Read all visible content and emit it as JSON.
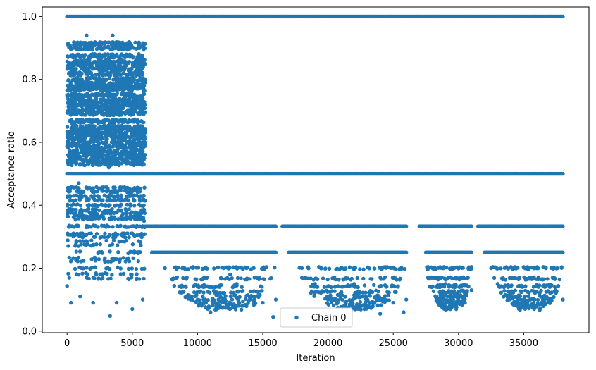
{
  "chart_data": {
    "type": "scatter",
    "title": "",
    "xlabel": "Iteration",
    "ylabel": "Acceptance ratio",
    "xlim": [
      -1900,
      40000
    ],
    "ylim": [
      -0.005,
      1.03
    ],
    "xticks": [
      0,
      5000,
      10000,
      15000,
      20000,
      25000,
      30000,
      35000
    ],
    "xtick_labels": [
      "0",
      "5000",
      "10000",
      "15000",
      "20000",
      "25000",
      "30000",
      "35000"
    ],
    "yticks": [
      0.0,
      0.2,
      0.4,
      0.6,
      0.8,
      1.0
    ],
    "ytick_labels": [
      "0.0",
      "0.2",
      "0.4",
      "0.6",
      "0.8",
      "1.0"
    ],
    "grid": false,
    "legend": {
      "position": "lower-center"
    },
    "series": [
      {
        "name": "Chain 0",
        "color": "#1f77b4",
        "marker": "circle",
        "x_range": [
          0,
          38000
        ],
        "description_levels": {
          "burn_in_end": 6000,
          "segments": [
            {
              "x": [
                0,
                38000
              ],
              "y": 1.0
            },
            {
              "x": [
                0,
                38000
              ],
              "y": 0.5
            },
            {
              "x": [
                6000,
                16000
              ],
              "y": 0.333
            },
            {
              "x": [
                16500,
                26000
              ],
              "y": 0.333
            },
            {
              "x": [
                27000,
                31000
              ],
              "y": 0.333
            },
            {
              "x": [
                31500,
                38000
              ],
              "y": 0.333
            },
            {
              "x": [
                6500,
                16000
              ],
              "y": 0.25
            },
            {
              "x": [
                17000,
                26000
              ],
              "y": 0.25
            },
            {
              "x": [
                27500,
                31000
              ],
              "y": 0.25
            },
            {
              "x": [
                32000,
                38000
              ],
              "y": 0.25
            }
          ]
        },
        "points": [
          [
            0,
            1.0
          ],
          [
            500,
            0.9
          ],
          [
            1000,
            0.85
          ],
          [
            2000,
            0.7
          ],
          [
            3000,
            0.6
          ],
          [
            4000,
            0.55
          ],
          [
            5000,
            0.45
          ],
          [
            5900,
            0.35
          ],
          [
            0,
            0.143
          ],
          [
            300,
            0.09
          ],
          [
            1000,
            0.11
          ],
          [
            2000,
            0.09
          ],
          [
            3300,
            0.048
          ],
          [
            3800,
            0.09
          ],
          [
            5000,
            0.07
          ],
          [
            5800,
            0.1
          ],
          [
            3500,
            0.94
          ],
          [
            3200,
            0.52
          ],
          [
            1500,
            0.94
          ],
          [
            900,
            0.47
          ],
          [
            7500,
            0.2
          ],
          [
            9000,
            0.2
          ],
          [
            10000,
            0.1
          ],
          [
            10800,
            0.07
          ],
          [
            11000,
            0.06
          ],
          [
            12000,
            0.2
          ],
          [
            12500,
            0.18
          ],
          [
            13000,
            0.15
          ],
          [
            14000,
            0.1
          ],
          [
            15000,
            0.09
          ],
          [
            15800,
            0.045
          ],
          [
            16000,
            0.1
          ],
          [
            18000,
            0.2
          ],
          [
            19000,
            0.15
          ],
          [
            20000,
            0.1
          ],
          [
            21000,
            0.2
          ],
          [
            22000,
            0.15
          ],
          [
            23000,
            0.1
          ],
          [
            24000,
            0.055
          ],
          [
            25000,
            0.09
          ],
          [
            25800,
            0.06
          ],
          [
            26000,
            0.1
          ],
          [
            28000,
            0.2
          ],
          [
            29000,
            0.15
          ],
          [
            30000,
            0.1
          ],
          [
            30500,
            0.09
          ],
          [
            31000,
            0.13
          ],
          [
            32500,
            0.2
          ],
          [
            33000,
            0.15
          ],
          [
            34000,
            0.12
          ],
          [
            35000,
            0.1
          ],
          [
            35800,
            0.07
          ],
          [
            37000,
            0.14
          ],
          [
            38000,
            0.1
          ]
        ]
      }
    ]
  }
}
